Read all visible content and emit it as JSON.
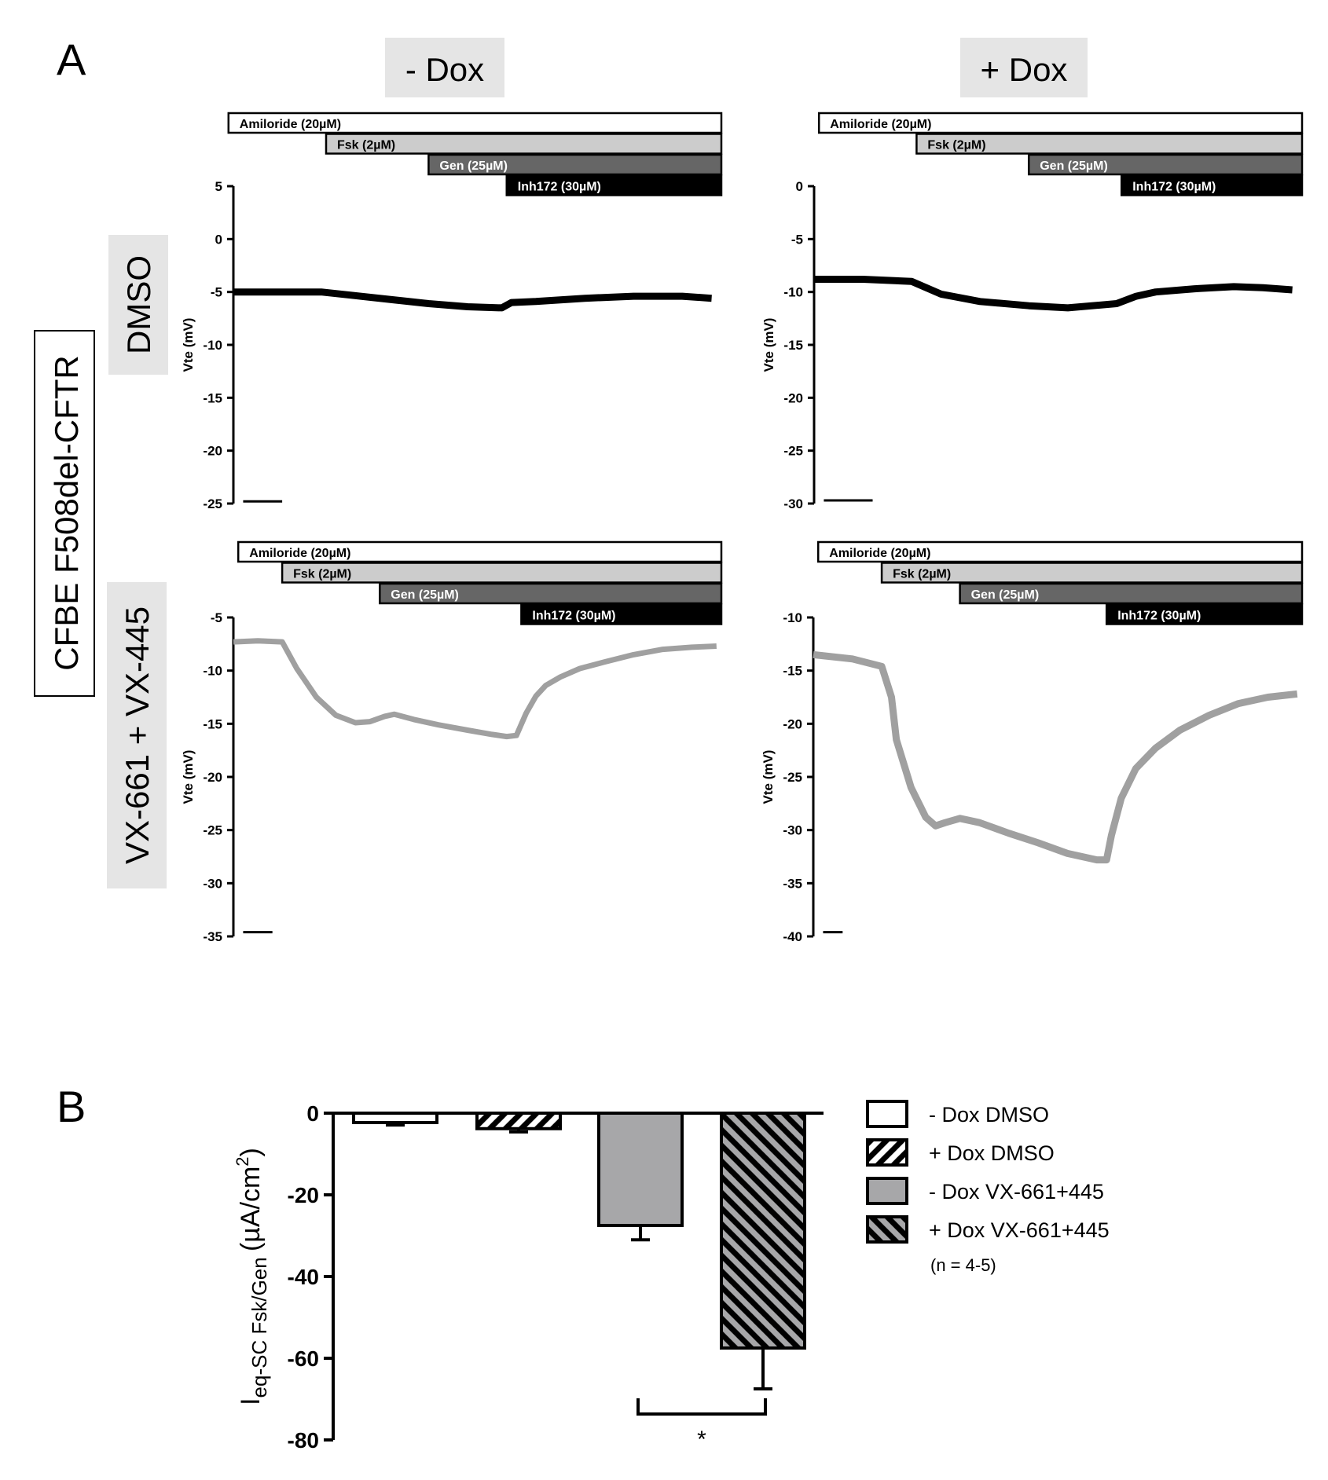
{
  "figure": {
    "panel_a_label": "A",
    "panel_b_label": "B",
    "col_headers": [
      "- Dox",
      "+ Dox"
    ],
    "cell_line_label": "CFBE F508del-CFTR",
    "row_labels": [
      "DMSO",
      "VX-661 + VX-445"
    ]
  },
  "colors": {
    "header_bg": "#e5e5e5",
    "trace_dmso": "#000000",
    "trace_vx": "#a0a0a0",
    "bar_grey": "#a7a7a9",
    "fsk_bar": "#cccccc",
    "gen_bar": "#666666",
    "inh_bar": "#000000"
  },
  "chart_data": [
    {
      "type": "line",
      "id": "dmso_minus_dox",
      "ylabel": "Vte (mV)",
      "ylim": [
        -25,
        5
      ],
      "yticks": [
        5,
        0,
        -5,
        -10,
        -15,
        -20,
        -25
      ],
      "xlim": [
        0,
        100
      ],
      "color": "#000000",
      "line_width": 9,
      "treatments": [
        {
          "label": "Amiloride (20µM)",
          "start": -1
        },
        {
          "label": "Fsk (2µM)",
          "start": 19
        },
        {
          "label": "Gen (25µM)",
          "start": 40
        },
        {
          "label": "Inh172 (30µM)",
          "start": 56
        }
      ],
      "trace": {
        "x": [
          0,
          18,
          24,
          32,
          40,
          48,
          55,
          57,
          62,
          72,
          82,
          92,
          98
        ],
        "y": [
          -5.0,
          -5.0,
          -5.3,
          -5.7,
          -6.1,
          -6.4,
          -6.5,
          -6.0,
          -5.9,
          -5.6,
          -5.4,
          -5.4,
          -5.6
        ]
      },
      "time_scale_bar": {
        "x": [
          2,
          10
        ],
        "y": -24.8
      }
    },
    {
      "type": "line",
      "id": "dmso_plus_dox",
      "ylabel": "Vte (mV)",
      "ylim": [
        -30,
        0
      ],
      "yticks": [
        0,
        -5,
        -10,
        -15,
        -20,
        -25,
        -30
      ],
      "xlim": [
        0,
        100
      ],
      "color": "#000000",
      "line_width": 9,
      "treatments": [
        {
          "label": "Amiloride (20µM)",
          "start": 1
        },
        {
          "label": "Fsk (2µM)",
          "start": 21
        },
        {
          "label": "Gen (25µM)",
          "start": 44
        },
        {
          "label": "Inh172 (30µM)",
          "start": 63
        }
      ],
      "trace": {
        "x": [
          0,
          10,
          20,
          26,
          34,
          44,
          52,
          62,
          66,
          70,
          78,
          86,
          92,
          98
        ],
        "y": [
          -8.8,
          -8.8,
          -9.0,
          -10.2,
          -10.9,
          -11.3,
          -11.5,
          -11.1,
          -10.4,
          -10.0,
          -9.7,
          -9.5,
          -9.6,
          -9.8
        ]
      },
      "time_scale_bar": {
        "x": [
          2,
          12
        ],
        "y": -29.7
      }
    },
    {
      "type": "line",
      "id": "vx_minus_dox",
      "ylabel": "Vte (mV)",
      "ylim": [
        -35,
        -5
      ],
      "yticks": [
        -5,
        -10,
        -15,
        -20,
        -25,
        -30,
        -35
      ],
      "xlim": [
        0,
        100
      ],
      "color": "#a0a0a0",
      "line_width": 7,
      "treatments": [
        {
          "label": "Amiloride (20µM)",
          "start": 1
        },
        {
          "label": "Fsk (2µM)",
          "start": 10
        },
        {
          "label": "Gen (25µM)",
          "start": 30
        },
        {
          "label": "Inh172 (30µM)",
          "start": 59
        }
      ],
      "trace": {
        "x": [
          0,
          5,
          10,
          13,
          17,
          21,
          25,
          28,
          31,
          33,
          37,
          42,
          48,
          53,
          56,
          58,
          60,
          62,
          64,
          67,
          71,
          76,
          82,
          88,
          94,
          99
        ],
        "y": [
          -7.3,
          -7.2,
          -7.3,
          -9.8,
          -12.5,
          -14.2,
          -14.9,
          -14.8,
          -14.3,
          -14.1,
          -14.6,
          -15.1,
          -15.6,
          -16.0,
          -16.2,
          -16.1,
          -14.0,
          -12.4,
          -11.4,
          -10.6,
          -9.8,
          -9.2,
          -8.5,
          -8.0,
          -7.8,
          -7.7
        ]
      },
      "time_scale_bar": {
        "x": [
          2,
          8
        ],
        "y": -34.6
      }
    },
    {
      "type": "line",
      "id": "vx_plus_dox",
      "ylabel": "Vte (mV)",
      "ylim": [
        -40,
        -10
      ],
      "yticks": [
        -10,
        -15,
        -20,
        -25,
        -30,
        -35,
        -40
      ],
      "xlim": [
        0,
        100
      ],
      "color": "#a0a0a0",
      "line_width": 9,
      "treatments": [
        {
          "label": "Amiloride (20µM)",
          "start": 1
        },
        {
          "label": "Fsk (2µM)",
          "start": 14
        },
        {
          "label": "Gen (25µM)",
          "start": 30
        },
        {
          "label": "Inh172 (30µM)",
          "start": 60
        }
      ],
      "trace": {
        "x": [
          0,
          8,
          14,
          16,
          17,
          20,
          23,
          25,
          27,
          30,
          34,
          40,
          46,
          52,
          58,
          60,
          61,
          63,
          66,
          70,
          75,
          81,
          87,
          93,
          99
        ],
        "y": [
          -13.5,
          -13.9,
          -14.6,
          -17.5,
          -21.5,
          -26.0,
          -28.8,
          -29.6,
          -29.3,
          -28.9,
          -29.3,
          -30.3,
          -31.2,
          -32.2,
          -32.8,
          -32.8,
          -30.5,
          -27.0,
          -24.2,
          -22.3,
          -20.6,
          -19.2,
          -18.1,
          -17.5,
          -17.2
        ]
      },
      "time_scale_bar": {
        "x": [
          2,
          6
        ],
        "y": -39.6
      }
    },
    {
      "type": "bar",
      "id": "panel_b",
      "ylabel_main": "I",
      "ylabel_sub": "eq-SC Fsk/Gen",
      "ylabel_unit": "(µA/cm",
      "ylabel_sup": "2",
      "ylabel_close": ")",
      "ylim": [
        -80,
        0
      ],
      "yticks": [
        0,
        -20,
        -40,
        -60,
        -80
      ],
      "categories": [
        "- Dox DMSO",
        "+ Dox DMSO",
        "- Dox VX-661+445",
        "+ Dox VX-661+445"
      ],
      "values": [
        -2.3,
        -3.8,
        -27.5,
        -57.5
      ],
      "errors": [
        0.6,
        0.8,
        3.5,
        10.0
      ],
      "fills": [
        "white",
        "hatch-white",
        "grey",
        "hatch-grey"
      ],
      "legend": {
        "entries": [
          "- Dox DMSO",
          "+ Dox DMSO",
          "- Dox VX-661+445",
          "+ Dox VX-661+445"
        ],
        "note": "(n = 4-5)",
        "position": "right"
      },
      "significance": {
        "between": [
          2,
          3
        ],
        "label": "*"
      }
    }
  ]
}
